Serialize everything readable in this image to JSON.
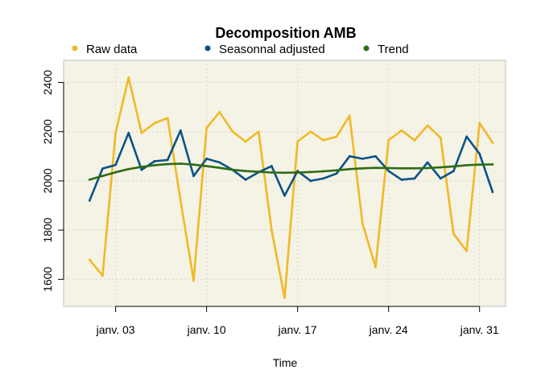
{
  "chart_data": {
    "type": "line",
    "title": "Decomposition AMB",
    "xlabel": "Time",
    "ylabel": "",
    "x": [
      "2020-01-01",
      "2020-01-02",
      "2020-01-03",
      "2020-01-04",
      "2020-01-05",
      "2020-01-06",
      "2020-01-07",
      "2020-01-08",
      "2020-01-09",
      "2020-01-10",
      "2020-01-11",
      "2020-01-12",
      "2020-01-13",
      "2020-01-14",
      "2020-01-15",
      "2020-01-16",
      "2020-01-17",
      "2020-01-18",
      "2020-01-19",
      "2020-01-20",
      "2020-01-21",
      "2020-01-22",
      "2020-01-23",
      "2020-01-24",
      "2020-01-25",
      "2020-01-26",
      "2020-01-27",
      "2020-01-28",
      "2020-01-29",
      "2020-01-30",
      "2020-01-31",
      "2020-02-01"
    ],
    "xlim": [
      "2019-12-30",
      "2020-02-02"
    ],
    "ylim": [
      1490,
      2490
    ],
    "x_ticks": [
      {
        "date": "2020-01-03",
        "label": "janv. 03"
      },
      {
        "date": "2020-01-10",
        "label": "janv. 10"
      },
      {
        "date": "2020-01-17",
        "label": "janv. 17"
      },
      {
        "date": "2020-01-24",
        "label": "janv. 24"
      },
      {
        "date": "2020-01-31",
        "label": "janv. 31"
      }
    ],
    "y_ticks": [
      1600,
      1800,
      2000,
      2200,
      2400
    ],
    "grid": true,
    "legend_position": "top",
    "background_color": "#F5F2E6",
    "series": [
      {
        "name": "Raw data",
        "color": "#EFBA26",
        "values": [
          1680,
          1615,
          2195,
          2420,
          2195,
          2235,
          2255,
          1920,
          1595,
          2215,
          2280,
          2200,
          2160,
          2200,
          1800,
          1525,
          2160,
          2200,
          2165,
          2180,
          2265,
          1825,
          1650,
          2165,
          2205,
          2165,
          2225,
          2175,
          1785,
          1715,
          2235,
          2155
        ]
      },
      {
        "name": "Seasonnal adjusted",
        "color": "#0A5387",
        "values": [
          1920,
          2050,
          2065,
          2195,
          2045,
          2080,
          2085,
          2205,
          2020,
          2090,
          2075,
          2045,
          2005,
          2035,
          2060,
          1940,
          2040,
          2000,
          2010,
          2030,
          2100,
          2090,
          2100,
          2040,
          2005,
          2010,
          2075,
          2010,
          2040,
          2180,
          2110,
          1955
        ]
      },
      {
        "name": "Trend",
        "color": "#2E6C15",
        "values": [
          2005,
          2020,
          2035,
          2048,
          2057,
          2064,
          2068,
          2070,
          2066,
          2060,
          2053,
          2045,
          2040,
          2037,
          2034,
          2033,
          2034,
          2036,
          2039,
          2043,
          2048,
          2051,
          2053,
          2052,
          2051,
          2051,
          2052,
          2055,
          2059,
          2064,
          2066,
          2067
        ]
      }
    ]
  }
}
